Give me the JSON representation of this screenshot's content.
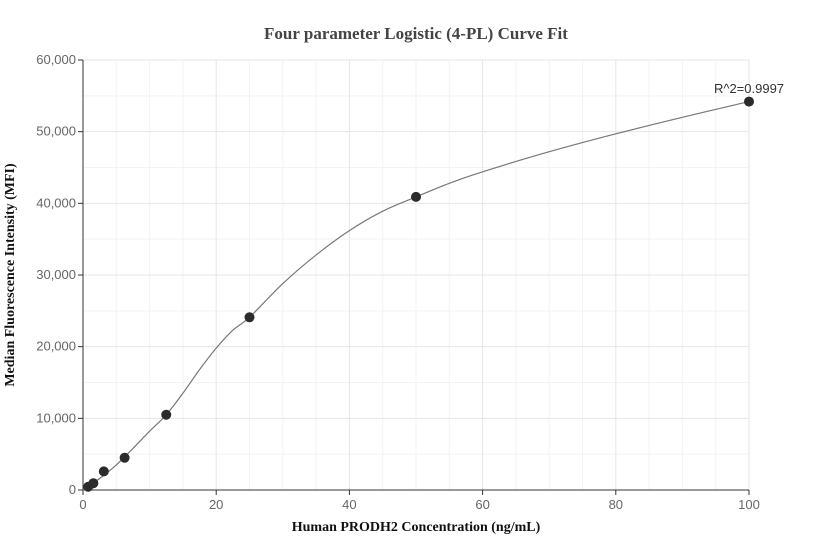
{
  "chart_data": {
    "type": "scatter",
    "title": "Four parameter Logistic (4-PL) Curve Fit",
    "xlabel": "Human PRODH2 Concentration (ng/mL)",
    "ylabel": "Median Fluorescence Intensity (MFI)",
    "xlim": [
      0,
      100
    ],
    "ylim": [
      0,
      60000
    ],
    "x_ticks": [
      0,
      20,
      40,
      60,
      80,
      100
    ],
    "y_ticks": [
      0,
      10000,
      20000,
      30000,
      40000,
      50000,
      60000
    ],
    "x_tick_labels": [
      "0",
      "20",
      "40",
      "60",
      "80",
      "100"
    ],
    "y_tick_labels": [
      "0",
      "10,000",
      "20,000",
      "30,000",
      "40,000",
      "50,000",
      "60,000"
    ],
    "grid": true,
    "annotation": "R^2=0.9997",
    "series": [
      {
        "x": [
          0.78,
          1.56,
          3.125,
          6.25,
          12.5,
          25,
          50,
          100
        ],
        "y": [
          450,
          950,
          2600,
          4500,
          10500,
          24100,
          40900,
          54200
        ]
      }
    ],
    "fit_curve": {
      "type": "4PL",
      "x": [
        0,
        2.5,
        5,
        7.5,
        10,
        12.5,
        15,
        17.5,
        20,
        22.5,
        25,
        30,
        35,
        40,
        45,
        50,
        55,
        60,
        70,
        80,
        90,
        100
      ],
      "y": [
        0,
        1600,
        3500,
        5800,
        8200,
        10500,
        13500,
        16800,
        19800,
        22300,
        24100,
        28800,
        32800,
        36200,
        38900,
        40900,
        42800,
        44400,
        47200,
        49700,
        52000,
        54200
      ]
    }
  }
}
